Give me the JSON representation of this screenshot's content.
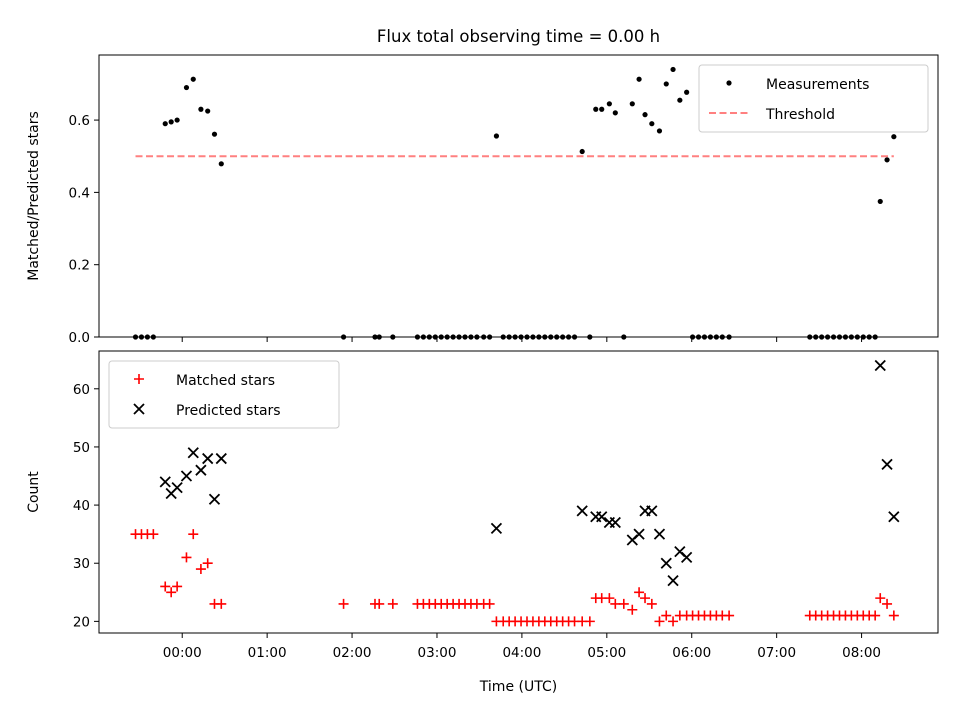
{
  "chart_data": [
    {
      "type": "scatter",
      "title": "Flux total observing time = 0.00 h",
      "xlabel": "",
      "ylabel": "Matched/Predicted stars",
      "xlim": [
        -0.98,
        8.9
      ],
      "ylim": [
        0.0,
        0.78
      ],
      "yticks": [
        0.0,
        0.2,
        0.4,
        0.6
      ],
      "ytick_labels": [
        "0.0",
        "0.2",
        "0.4",
        "0.6"
      ],
      "xticks": [
        0,
        1,
        2,
        3,
        4,
        5,
        6,
        7,
        8
      ],
      "legend_position": "upper-right",
      "series": [
        {
          "name": "Measurements",
          "marker": "dot",
          "color": "#000000",
          "x": [
            -0.55,
            -0.48,
            -0.41,
            -0.34,
            -0.2,
            -0.13,
            -0.06,
            0.05,
            0.13,
            0.22,
            0.3,
            0.38,
            0.46,
            1.9,
            2.27,
            2.32,
            2.48,
            2.77,
            2.84,
            2.91,
            2.98,
            3.05,
            3.12,
            3.19,
            3.26,
            3.33,
            3.4,
            3.47,
            3.55,
            3.62,
            3.7,
            3.78,
            3.85,
            3.92,
            3.99,
            4.06,
            4.13,
            4.2,
            4.27,
            4.34,
            4.41,
            4.48,
            4.55,
            4.62,
            4.71,
            4.8,
            4.87,
            4.94,
            5.03,
            5.1,
            5.2,
            5.3,
            5.38,
            5.45,
            5.53,
            5.62,
            5.7,
            5.78,
            5.86,
            5.94,
            6.01,
            6.08,
            6.15,
            6.22,
            6.29,
            6.36,
            6.44,
            7.39,
            7.46,
            7.53,
            7.6,
            7.67,
            7.74,
            7.81,
            7.88,
            7.95,
            8.02,
            8.09,
            8.16,
            8.22,
            8.3,
            8.38
          ],
          "y": [
            0.0,
            0.0,
            0.0,
            0.0,
            0.59,
            0.595,
            0.6,
            0.69,
            0.713,
            0.63,
            0.625,
            0.561,
            0.479,
            0.0,
            0.0,
            0.0,
            0.0,
            0.0,
            0.0,
            0.0,
            0.0,
            0.0,
            0.0,
            0.0,
            0.0,
            0.0,
            0.0,
            0.0,
            0.0,
            0.0,
            0.556,
            0.0,
            0.0,
            0.0,
            0.0,
            0.0,
            0.0,
            0.0,
            0.0,
            0.0,
            0.0,
            0.0,
            0.0,
            0.0,
            0.513,
            0.0,
            0.63,
            0.63,
            0.645,
            0.62,
            0.0,
            0.645,
            0.713,
            0.615,
            0.59,
            0.57,
            0.7,
            0.74,
            0.655,
            0.677,
            0.0,
            0.0,
            0.0,
            0.0,
            0.0,
            0.0,
            0.0,
            0.0,
            0.0,
            0.0,
            0.0,
            0.0,
            0.0,
            0.0,
            0.0,
            0.0,
            0.0,
            0.0,
            0.0,
            0.375,
            0.49,
            0.554
          ]
        },
        {
          "name": "Threshold",
          "marker": "dashed-line",
          "color": "#ff8080",
          "x": [
            -0.55,
            8.38
          ],
          "y": [
            0.5,
            0.5
          ]
        }
      ]
    },
    {
      "type": "scatter",
      "title": "",
      "xlabel": "Time (UTC)",
      "ylabel": "Count",
      "xlim": [
        -0.98,
        8.9
      ],
      "ylim": [
        18,
        66.5
      ],
      "yticks": [
        20,
        30,
        40,
        50,
        60
      ],
      "ytick_labels": [
        "20",
        "30",
        "40",
        "50",
        "60"
      ],
      "xticks": [
        0,
        1,
        2,
        3,
        4,
        5,
        6,
        7,
        8
      ],
      "xtick_labels": [
        "00:00",
        "01:00",
        "02:00",
        "03:00",
        "04:00",
        "05:00",
        "06:00",
        "07:00",
        "08:00"
      ],
      "legend_position": "upper-left",
      "series": [
        {
          "name": "Matched stars",
          "marker": "plus",
          "color": "#ff0000",
          "x": [
            -0.55,
            -0.48,
            -0.41,
            -0.34,
            -0.2,
            -0.13,
            -0.06,
            0.05,
            0.13,
            0.22,
            0.3,
            0.38,
            0.46,
            1.9,
            2.27,
            2.32,
            2.48,
            2.77,
            2.84,
            2.91,
            2.98,
            3.05,
            3.12,
            3.19,
            3.26,
            3.33,
            3.4,
            3.47,
            3.55,
            3.62,
            3.7,
            3.78,
            3.85,
            3.92,
            3.99,
            4.06,
            4.13,
            4.2,
            4.27,
            4.34,
            4.41,
            4.48,
            4.55,
            4.62,
            4.71,
            4.8,
            4.87,
            4.94,
            5.03,
            5.1,
            5.2,
            5.3,
            5.38,
            5.45,
            5.53,
            5.62,
            5.7,
            5.78,
            5.86,
            5.94,
            6.01,
            6.08,
            6.15,
            6.22,
            6.29,
            6.36,
            6.44,
            7.39,
            7.46,
            7.53,
            7.6,
            7.67,
            7.74,
            7.81,
            7.88,
            7.95,
            8.02,
            8.09,
            8.16,
            8.22,
            8.3,
            8.38
          ],
          "y": [
            35,
            35,
            35,
            35,
            26,
            25,
            26,
            31,
            35,
            29,
            30,
            23,
            23,
            23,
            23,
            23,
            23,
            23,
            23,
            23,
            23,
            23,
            23,
            23,
            23,
            23,
            23,
            23,
            23,
            23,
            20,
            20,
            20,
            20,
            20,
            20,
            20,
            20,
            20,
            20,
            20,
            20,
            20,
            20,
            20,
            20,
            24,
            24,
            24,
            23,
            23,
            22,
            25,
            24,
            23,
            20,
            21,
            20,
            21,
            21,
            21,
            21,
            21,
            21,
            21,
            21,
            21,
            21,
            21,
            21,
            21,
            21,
            21,
            21,
            21,
            21,
            21,
            21,
            21,
            24,
            23,
            21
          ]
        },
        {
          "name": "Predicted stars",
          "marker": "cross",
          "color": "#000000",
          "x": [
            -0.2,
            -0.13,
            -0.06,
            0.05,
            0.13,
            0.22,
            0.3,
            0.38,
            0.46,
            3.7,
            4.71,
            4.87,
            4.94,
            5.03,
            5.1,
            5.3,
            5.38,
            5.45,
            5.53,
            5.62,
            5.7,
            5.78,
            5.86,
            5.94,
            8.22,
            8.3,
            8.38
          ],
          "y": [
            44,
            42,
            43,
            45,
            49,
            46,
            48,
            41,
            48,
            36,
            39,
            38,
            38,
            37,
            37,
            34,
            35,
            39,
            39,
            35,
            30,
            27,
            32,
            31,
            64,
            47,
            38
          ]
        }
      ]
    }
  ]
}
